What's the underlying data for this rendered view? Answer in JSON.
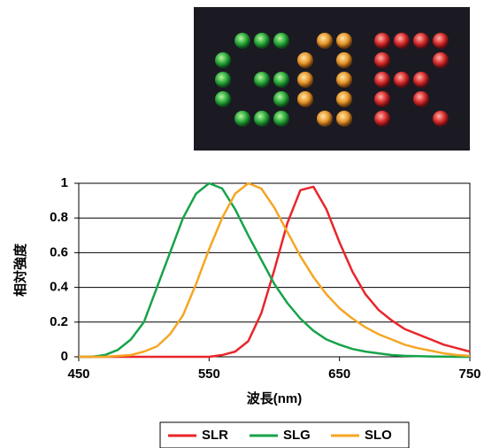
{
  "chart_data": {
    "type": "line",
    "xlabel": "波長(nm)",
    "ylabel": "相対強度",
    "x": [
      450,
      460,
      470,
      480,
      490,
      500,
      510,
      520,
      530,
      540,
      550,
      560,
      570,
      580,
      590,
      600,
      610,
      620,
      630,
      640,
      650,
      660,
      670,
      680,
      690,
      700,
      710,
      720,
      730,
      740,
      750
    ],
    "series": [
      {
        "name": "SLR",
        "color": "#e8262a",
        "values": [
          0,
          0,
          0,
          0,
          0,
          0,
          0,
          0,
          0,
          0,
          0,
          0.01,
          0.03,
          0.09,
          0.25,
          0.5,
          0.77,
          0.96,
          0.98,
          0.85,
          0.66,
          0.49,
          0.36,
          0.27,
          0.21,
          0.16,
          0.13,
          0.1,
          0.07,
          0.05,
          0.03
        ]
      },
      {
        "name": "SLG",
        "color": "#17a34a",
        "values": [
          0,
          0,
          0.01,
          0.04,
          0.1,
          0.2,
          0.4,
          0.6,
          0.8,
          0.94,
          1.0,
          0.97,
          0.85,
          0.7,
          0.56,
          0.42,
          0.31,
          0.22,
          0.15,
          0.1,
          0.07,
          0.045,
          0.03,
          0.02,
          0.01,
          0.006,
          0.004,
          0.002,
          0.001,
          0,
          0
        ]
      },
      {
        "name": "SLO",
        "color": "#f5a623",
        "values": [
          0,
          0,
          0,
          0.005,
          0.01,
          0.03,
          0.06,
          0.13,
          0.24,
          0.42,
          0.62,
          0.8,
          0.94,
          1.0,
          0.97,
          0.86,
          0.72,
          0.58,
          0.46,
          0.36,
          0.28,
          0.22,
          0.17,
          0.13,
          0.1,
          0.07,
          0.05,
          0.035,
          0.02,
          0.01,
          0.005
        ]
      }
    ],
    "xlim": [
      450,
      750
    ],
    "xticks": [
      450,
      550,
      650,
      750
    ],
    "ylim": [
      0,
      1
    ],
    "yticks": [
      0,
      0.2,
      0.4,
      0.6,
      0.8,
      1
    ],
    "grid": true
  }
}
